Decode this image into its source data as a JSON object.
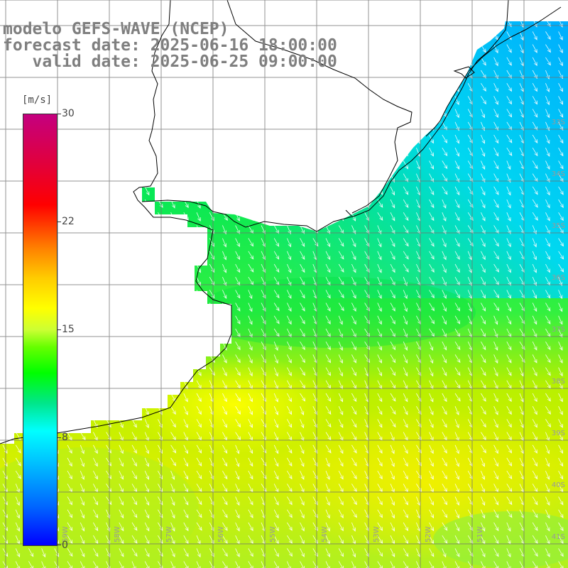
{
  "header": {
    "line1": "modelo GEFS-WAVE (NCEP)",
    "line2": "forecast date: 2025-06-16 18:00:00",
    "line3": "   valid date: 2025-06-25 09:00:00"
  },
  "colorbar": {
    "unit": "[m/s]",
    "labels": [
      "0",
      "8",
      "15",
      "22",
      "30"
    ],
    "min": 0,
    "max": 30,
    "colors": [
      "#0000ff",
      "#00bfff",
      "#00ffff",
      "#00ff00",
      "#ffff00",
      "#ff8000",
      "#ff0000",
      "#c4007f"
    ]
  },
  "axes": {
    "lat_labels": [
      "33S",
      "34S",
      "35S",
      "36S",
      "37S",
      "38S",
      "39S",
      "40S",
      "41S"
    ],
    "lon_labels": [
      "59W",
      "58W",
      "57W",
      "56W",
      "55W",
      "54W",
      "53W",
      "52W",
      "51W"
    ]
  },
  "layers": {
    "field": "wind speed (shaded)",
    "vectors": "white arrows, direction toward SE / SSE",
    "grid": true,
    "coastline": "black line"
  },
  "regions": {
    "offshore_east": "cyan-blue (about 8-10 m/s)",
    "central": "green (about 11-14 m/s)",
    "south": "yellow-green to yellow (about 15-18 m/s)"
  }
}
